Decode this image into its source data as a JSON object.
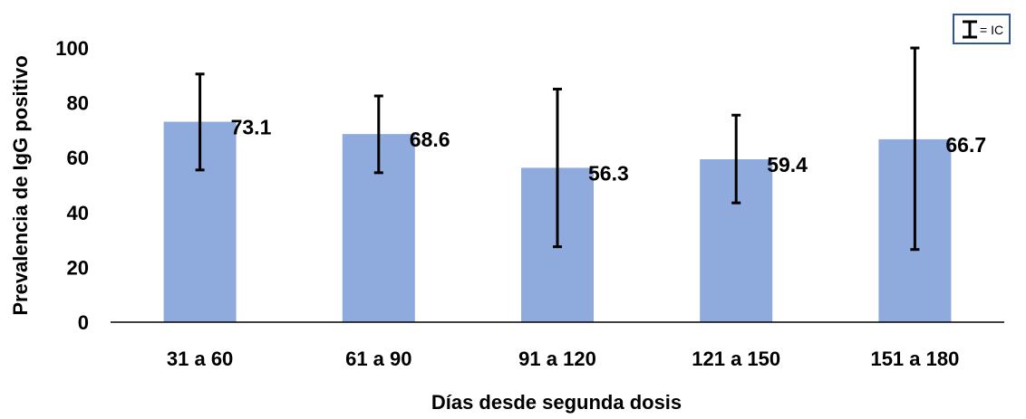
{
  "chart_data": {
    "type": "bar",
    "categories": [
      "31 a 60",
      "61 a 90",
      "91 a 120",
      "121 a 150",
      "151 a 180"
    ],
    "values": [
      73.1,
      68.6,
      56.3,
      59.4,
      66.7
    ],
    "value_labels": [
      "73.1",
      "68.6",
      "56.3",
      "59.4",
      "66.7"
    ],
    "ci_low": [
      55.5,
      54.5,
      27.5,
      43.5,
      26.5
    ],
    "ci_high": [
      90.5,
      82.5,
      85,
      75.5,
      100
    ],
    "xlabel": "Días desde segunda dosis",
    "ylabel": "Prevalencia de IgG positivo",
    "ylim": [
      0,
      100
    ],
    "yticks": [
      "0",
      "20",
      "40",
      "60",
      "80",
      "100"
    ],
    "ytick_values": [
      0,
      20,
      40,
      60,
      80,
      100
    ],
    "grid": false,
    "legend": {
      "label": "= IC",
      "placement": "top-right"
    },
    "colors": {
      "bar": "#8faadc",
      "error_bar": "#000000",
      "axis": "#000000",
      "legend_border": "#2e5597"
    }
  }
}
